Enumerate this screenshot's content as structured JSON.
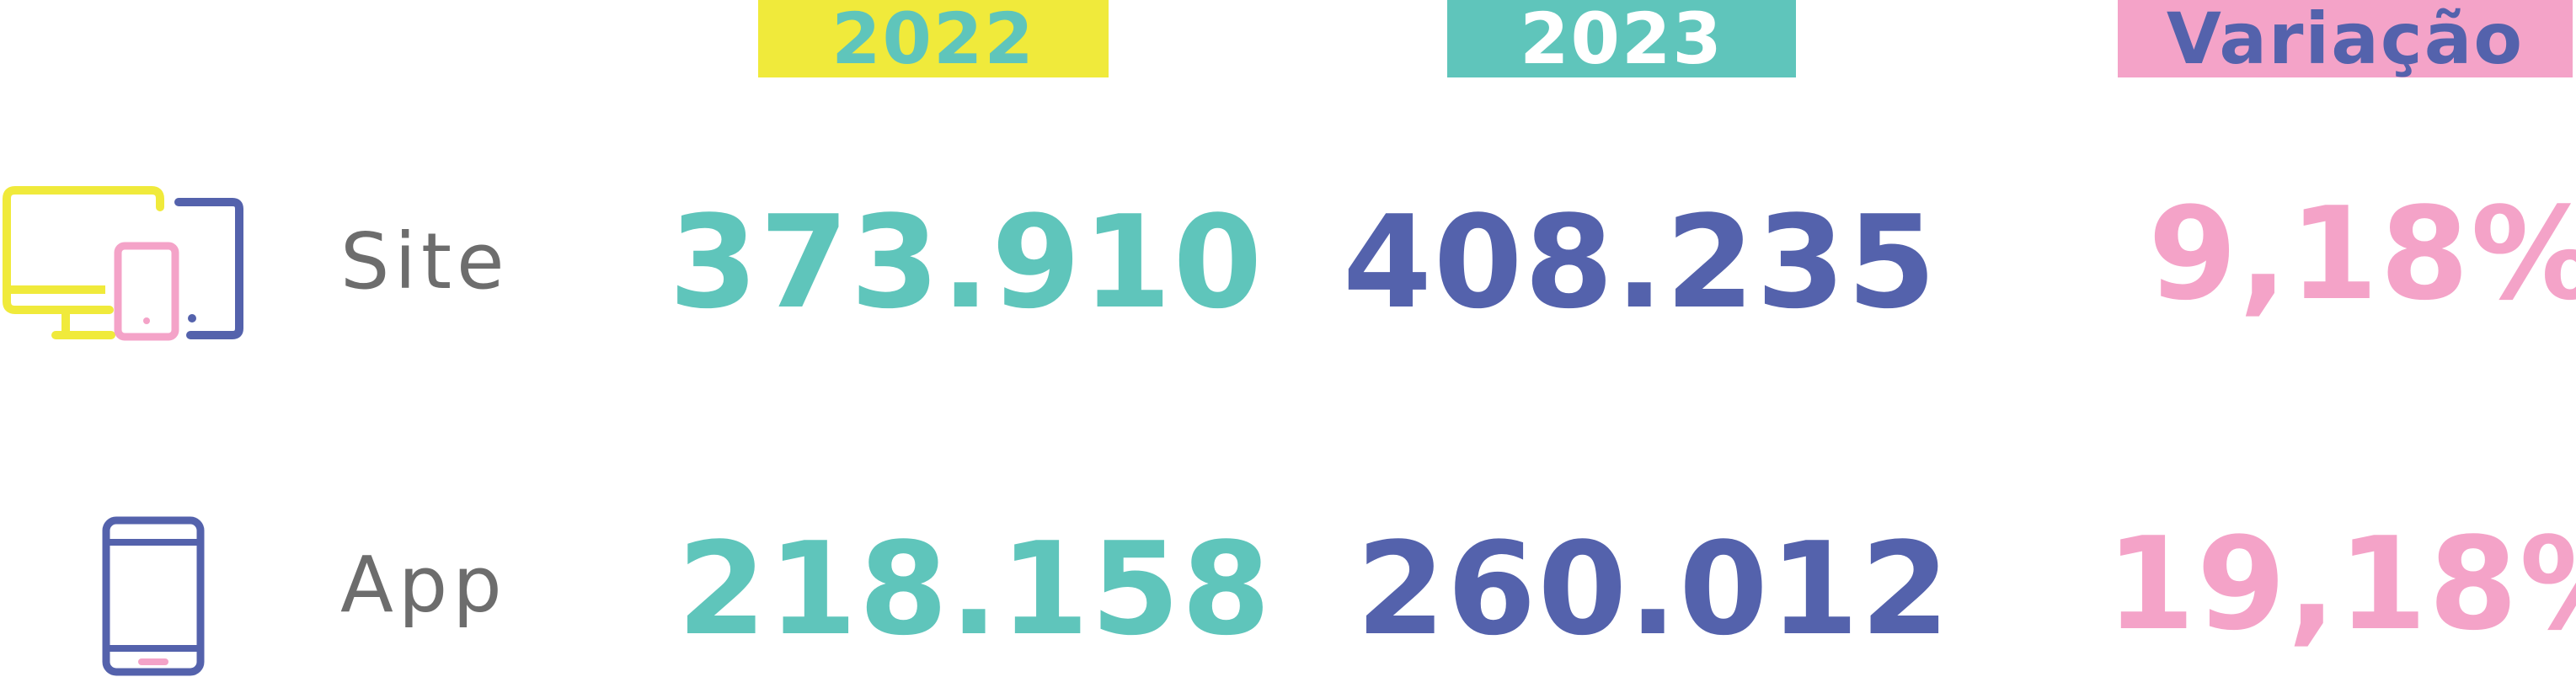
{
  "colors": {
    "yellow": "#f0ea3b",
    "teal": "#5fc5bb",
    "indigo": "#5462ac",
    "pink": "#f4a3c8",
    "gray": "#6d6d6d"
  },
  "headers": {
    "year_2022": "2022",
    "year_2023": "2023",
    "variation": "Variação"
  },
  "rows": [
    {
      "label": "Site",
      "icon": "multi-device-icon",
      "value_2022": "373.910",
      "value_2023": "408.235",
      "variation": "9,18%"
    },
    {
      "label": "App",
      "icon": "smartphone-icon",
      "value_2022": "218.158",
      "value_2023": "260.012",
      "variation": "19,18%"
    }
  ]
}
